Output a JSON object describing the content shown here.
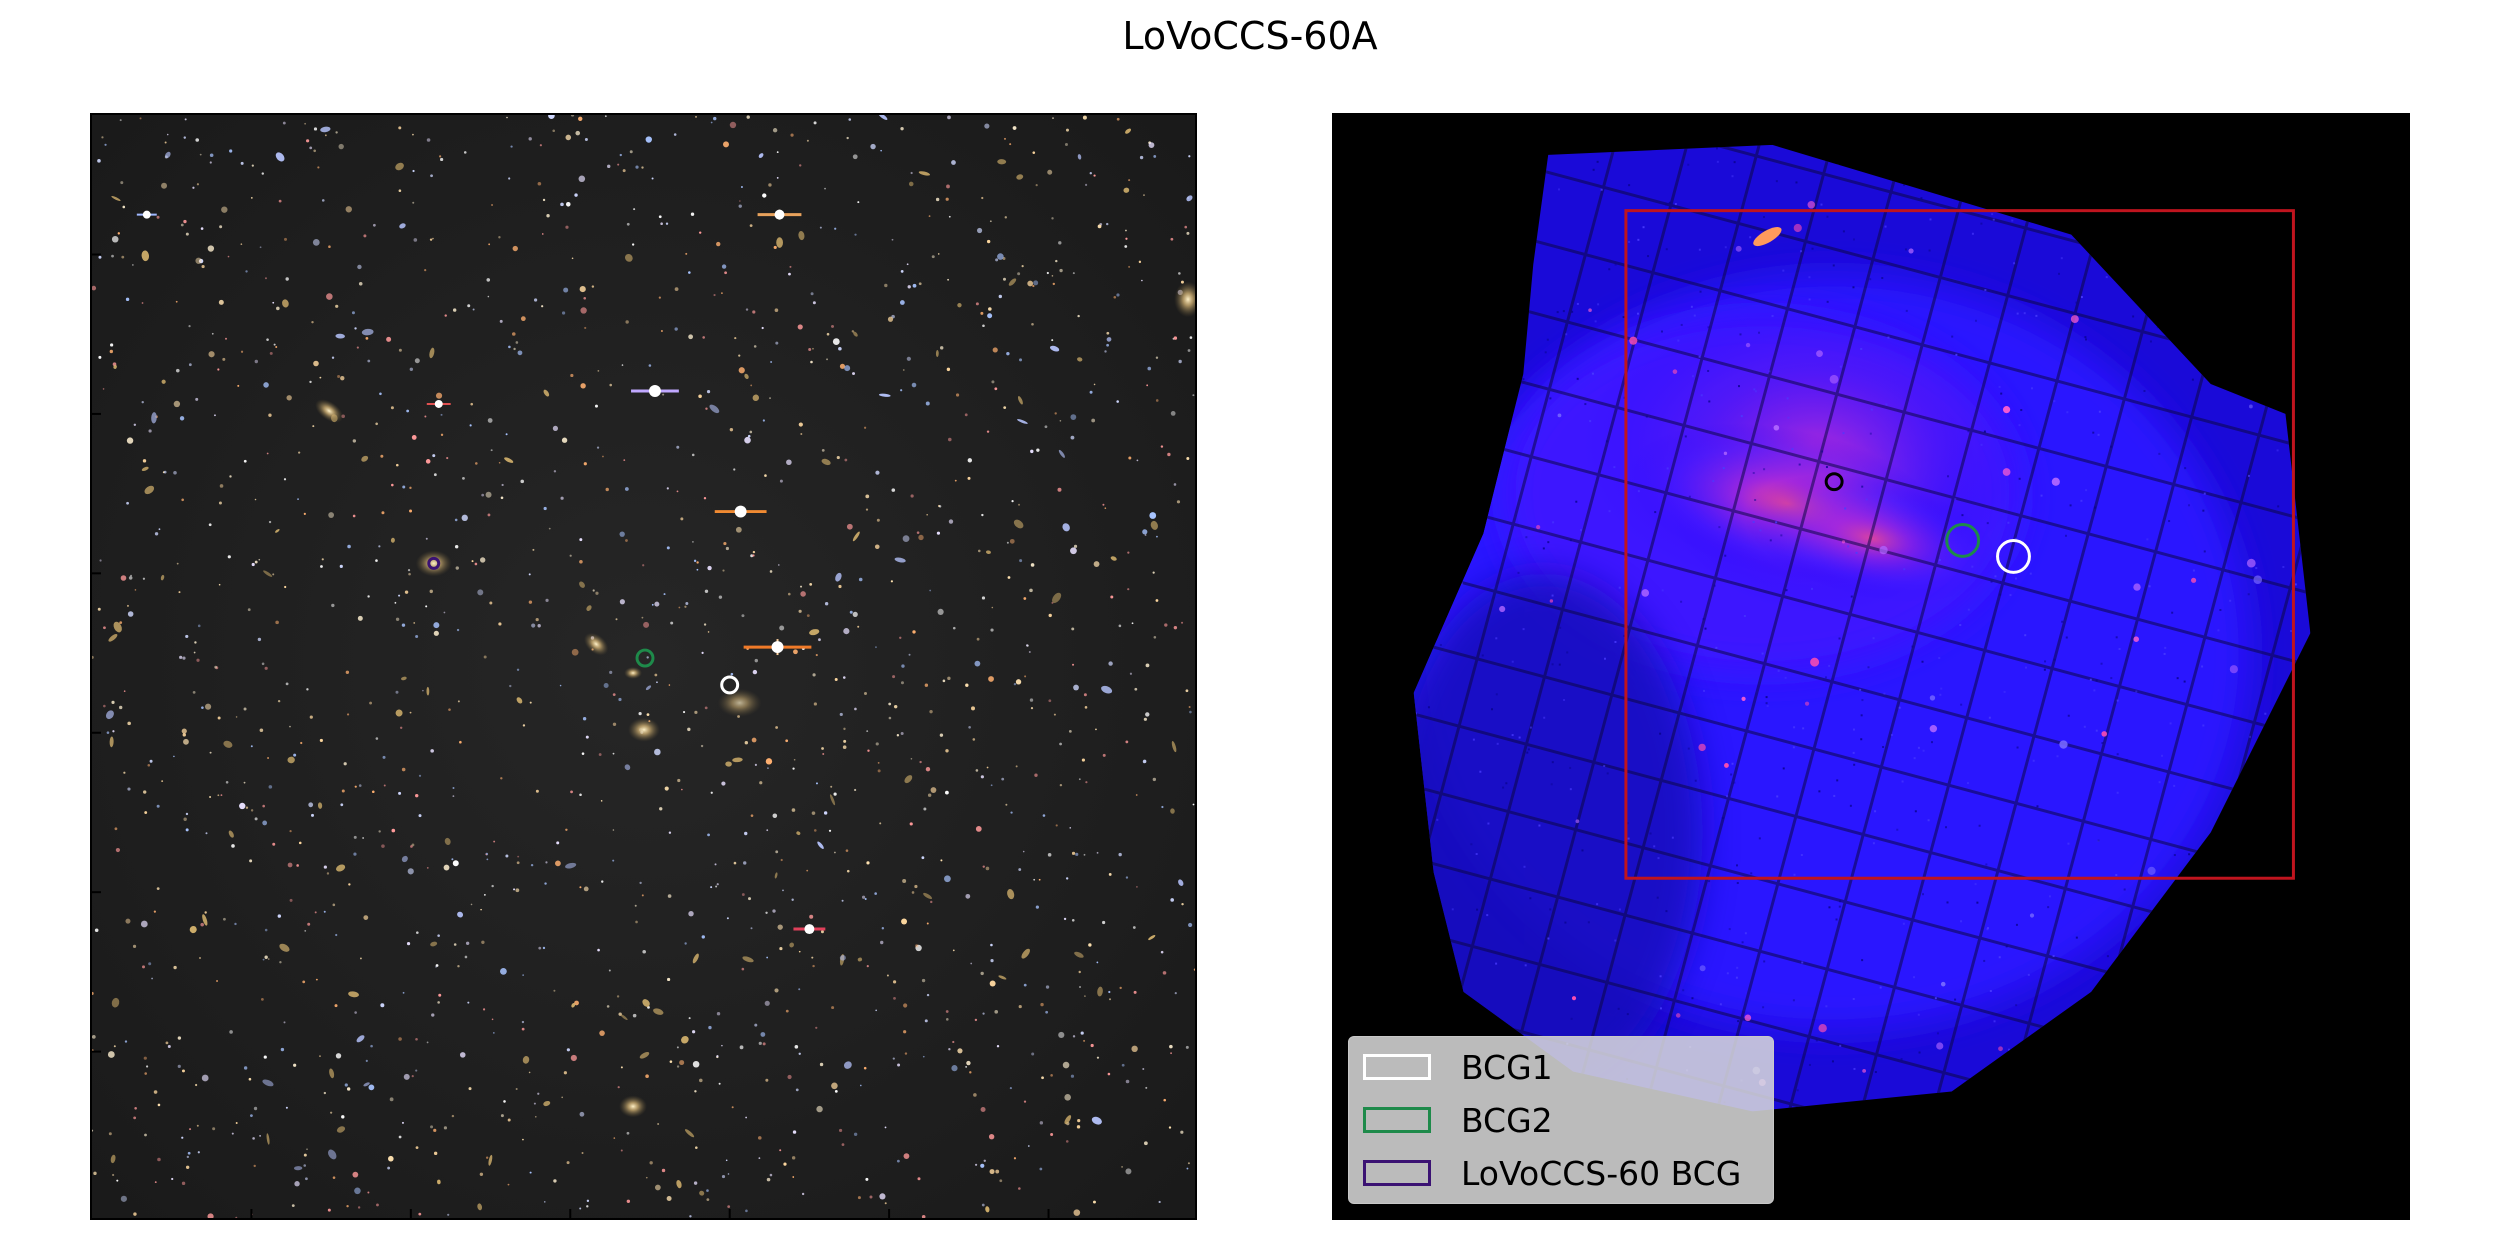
{
  "figure": {
    "title": "LoVoCCS-60A"
  },
  "optical_panel": {
    "markers": [
      {
        "name": "BCG1",
        "color": "#ffffff"
      },
      {
        "name": "BCG2",
        "color": "#1e8a4a"
      },
      {
        "name": "LoVoCCS-60 BCG",
        "color": "#3b1273"
      }
    ]
  },
  "xray_panel": {
    "region_box_color": "#c0141e",
    "markers": [
      {
        "name": "BCG1",
        "color": "#ffffff"
      },
      {
        "name": "BCG2",
        "color": "#1e8a4a"
      },
      {
        "name": "LoVoCCS-60 BCG",
        "color": "#000000"
      }
    ]
  },
  "legend": {
    "items": [
      {
        "label": "BCG1",
        "color": "#ffffff"
      },
      {
        "label": "BCG2",
        "color": "#1e8a4a"
      },
      {
        "label": "LoVoCCS-60 BCG",
        "color": "#3b1273"
      }
    ]
  }
}
